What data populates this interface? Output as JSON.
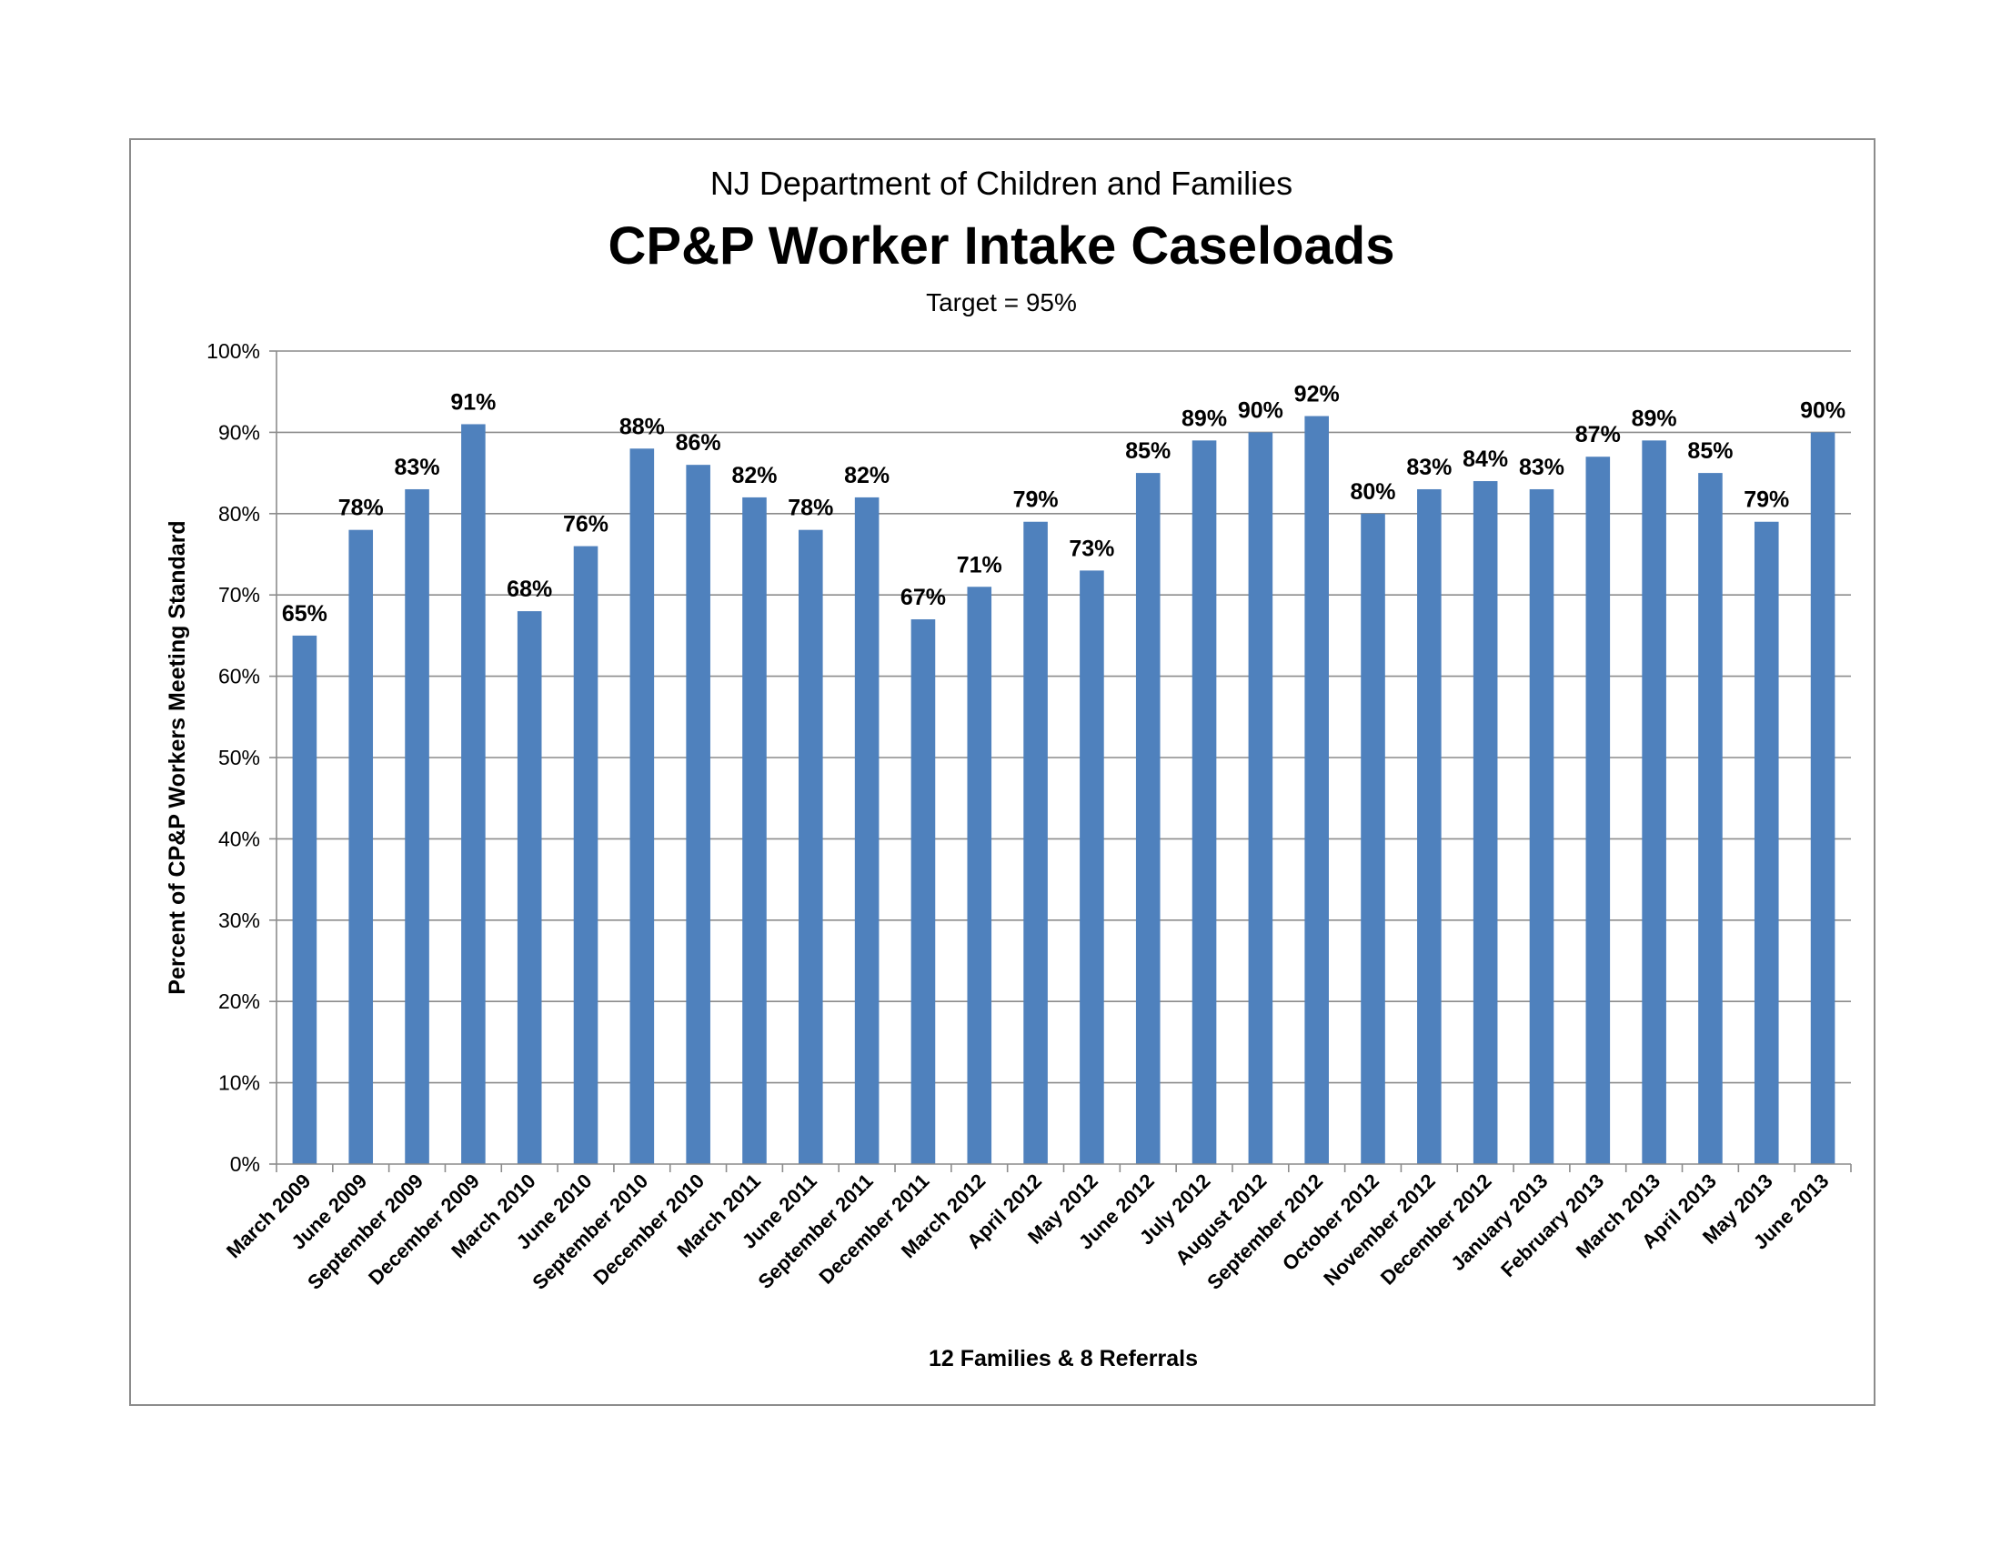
{
  "chart_data": {
    "type": "bar",
    "title_top": "NJ Department of Children and Families",
    "title": "CP&P Worker Intake Caseloads",
    "subtitle": "Target = 95%",
    "ylabel": "Percent of CP&P Workers Meeting Standard",
    "xlabel": "12 Families & 8 Referrals",
    "ylim": [
      0,
      100
    ],
    "yticks": [
      "0%",
      "10%",
      "20%",
      "30%",
      "40%",
      "50%",
      "60%",
      "70%",
      "80%",
      "90%",
      "100%"
    ],
    "grid": true,
    "legend": "none",
    "bar_color": "#4f81bd",
    "categories": [
      "March 2009",
      "June 2009",
      "September 2009",
      "December 2009",
      "March 2010",
      "June 2010",
      "September 2010",
      "December 2010",
      "March 2011",
      "June 2011",
      "September 2011",
      "December 2011",
      "March 2012",
      "April 2012",
      "May 2012",
      "June 2012",
      "July 2012",
      "August 2012",
      "September 2012",
      "October 2012",
      "November 2012",
      "December 2012",
      "January 2013",
      "February 2013",
      "March 2013",
      "April 2013",
      "May 2013",
      "June 2013"
    ],
    "values": [
      65,
      78,
      83,
      91,
      68,
      76,
      88,
      86,
      82,
      78,
      82,
      67,
      71,
      79,
      73,
      85,
      89,
      90,
      92,
      80,
      83,
      84,
      83,
      87,
      89,
      85,
      79,
      90
    ],
    "data_labels": [
      "65%",
      "78%",
      "83%",
      "91%",
      "68%",
      "76%",
      "88%",
      "86%",
      "82%",
      "78%",
      "82%",
      "67%",
      "71%",
      "79%",
      "73%",
      "85%",
      "89%",
      "90%",
      "92%",
      "80%",
      "83%",
      "84%",
      "83%",
      "87%",
      "89%",
      "85%",
      "79%",
      "90%"
    ]
  }
}
